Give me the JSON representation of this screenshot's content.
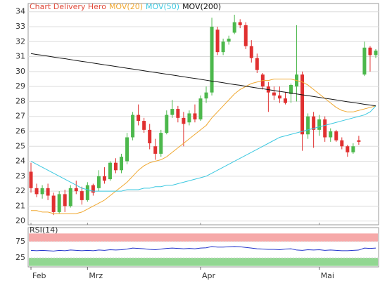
{
  "chart_data": [
    {
      "type": "candlestick",
      "title": "Chart Delivery Hero",
      "title_color": "#e04a3a",
      "categories": [
        "Feb",
        null,
        null,
        null,
        null,
        null,
        null,
        null,
        null,
        null,
        "Mrz",
        null,
        null,
        null,
        null,
        null,
        null,
        null,
        null,
        null,
        null,
        null,
        null,
        null,
        null,
        null,
        null,
        null,
        null,
        null,
        "Apr",
        null,
        null,
        null,
        null,
        null,
        null,
        null,
        null,
        null,
        null,
        null,
        null,
        null,
        null,
        null,
        null,
        null,
        null,
        null,
        null,
        "Mai",
        null,
        null,
        null,
        null,
        null,
        null,
        null,
        null,
        null,
        null
      ],
      "open": [
        23.3,
        22.2,
        21.8,
        22.2,
        21.7,
        20.6,
        21.8,
        21.0,
        22.2,
        22.0,
        21.4,
        22.4,
        22.2,
        23.0,
        22.8,
        23.9,
        23.4,
        24.0,
        25.6,
        27.1,
        26.7,
        26.1,
        25.0,
        24.5,
        25.9,
        27.1,
        27.5,
        26.9,
        26.6,
        27.2,
        26.8,
        28.2,
        28.6,
        32.8,
        31.3,
        32.0,
        32.6,
        33.3,
        33.1,
        31.7,
        30.9,
        29.8,
        29.0,
        28.6,
        28.4,
        28.2,
        28.5,
        29.0,
        29.8,
        25.8,
        27.0,
        26.1,
        26.8,
        25.6,
        26.0,
        25.4,
        25.0,
        24.6,
        25.4,
        29.8,
        31.6,
        31.1
      ],
      "high": [
        23.9,
        22.5,
        22.4,
        22.5,
        21.9,
        22.0,
        22.1,
        22.4,
        22.7,
        22.3,
        22.6,
        22.5,
        23.4,
        23.6,
        24.0,
        24.2,
        24.5,
        25.9,
        27.3,
        27.8,
        26.9,
        26.5,
        25.5,
        26.1,
        27.4,
        28.1,
        27.7,
        27.3,
        27.4,
        27.8,
        28.4,
        29.0,
        33.6,
        33.0,
        32.2,
        32.4,
        33.8,
        33.5,
        33.3,
        32.1,
        31.2,
        29.9,
        29.3,
        29.0,
        29.0,
        28.6,
        29.2,
        33.1,
        30.0,
        27.2,
        27.3,
        27.1,
        27.0,
        26.2,
        26.1,
        25.6,
        25.1,
        25.2,
        25.7,
        32.0,
        31.7,
        31.5
      ],
      "low": [
        21.9,
        21.6,
        21.5,
        21.4,
        20.4,
        20.5,
        20.6,
        20.9,
        21.8,
        21.1,
        21.3,
        21.7,
        22.0,
        22.5,
        22.7,
        23.2,
        23.2,
        23.8,
        25.4,
        26.4,
        25.9,
        24.8,
        24.1,
        24.3,
        25.8,
        26.9,
        26.6,
        25.0,
        26.4,
        26.6,
        26.7,
        27.9,
        28.4,
        31.1,
        31.1,
        31.8,
        32.5,
        32.9,
        31.5,
        30.6,
        29.9,
        28.8,
        27.3,
        28.1,
        27.9,
        27.8,
        27.9,
        28.0,
        24.7,
        25.5,
        24.9,
        25.7,
        25.3,
        25.3,
        25.3,
        24.8,
        24.3,
        24.5,
        25.1,
        29.7,
        30.0,
        30.9
      ],
      "close": [
        22.2,
        21.8,
        22.2,
        21.7,
        20.6,
        21.8,
        21.0,
        22.2,
        22.0,
        21.4,
        22.4,
        21.9,
        23.0,
        22.7,
        23.9,
        23.4,
        24.3,
        25.6,
        27.1,
        26.7,
        26.1,
        25.2,
        24.5,
        25.9,
        27.1,
        27.5,
        26.9,
        26.5,
        27.2,
        26.8,
        28.2,
        28.6,
        33.0,
        31.3,
        32.0,
        32.2,
        33.3,
        33.1,
        31.7,
        30.9,
        30.1,
        29.0,
        28.6,
        28.4,
        28.2,
        27.9,
        29.1,
        29.8,
        25.8,
        27.0,
        26.1,
        26.8,
        25.6,
        26.0,
        25.4,
        25.0,
        24.6,
        25.0,
        25.3,
        31.6,
        31.1,
        31.4
      ],
      "up_color": "#4cb84c",
      "down_color": "#e03030",
      "series": [
        {
          "name": "MOV(20)",
          "color": "#f0a830",
          "values": [
            20.7,
            20.7,
            20.6,
            20.6,
            20.5,
            20.5,
            20.5,
            20.5,
            20.5,
            20.6,
            20.8,
            21.0,
            21.2,
            21.4,
            21.7,
            22.0,
            22.3,
            22.6,
            23.0,
            23.4,
            23.7,
            23.9,
            24.0,
            24.1,
            24.3,
            24.6,
            24.9,
            25.2,
            25.5,
            25.8,
            26.1,
            26.4,
            26.9,
            27.3,
            27.7,
            28.1,
            28.5,
            28.8,
            29.0,
            29.2,
            29.3,
            29.4,
            29.4,
            29.5,
            29.5,
            29.5,
            29.5,
            29.4,
            29.3,
            29.1,
            28.8,
            28.5,
            28.2,
            27.9,
            27.6,
            27.4,
            27.3,
            27.3,
            27.4,
            27.5,
            27.6,
            27.7
          ]
        },
        {
          "name": "MOV(50)",
          "color": "#3cc8e0",
          "values": [
            24.0,
            23.8,
            23.6,
            23.4,
            23.2,
            23.0,
            22.8,
            22.6,
            22.4,
            22.2,
            22.1,
            22.0,
            22.0,
            22.0,
            22.0,
            22.0,
            22.0,
            22.1,
            22.1,
            22.1,
            22.2,
            22.2,
            22.3,
            22.3,
            22.4,
            22.4,
            22.5,
            22.6,
            22.7,
            22.8,
            22.9,
            23.0,
            23.2,
            23.4,
            23.6,
            23.8,
            24.0,
            24.2,
            24.4,
            24.6,
            24.8,
            25.0,
            25.2,
            25.4,
            25.6,
            25.7,
            25.8,
            25.9,
            26.0,
            26.1,
            26.2,
            26.3,
            26.4,
            26.5,
            26.6,
            26.7,
            26.8,
            26.9,
            27.0,
            27.1,
            27.3,
            27.7
          ]
        },
        {
          "name": "MOV(200)",
          "color": "#111111",
          "values": [
            31.2,
            31.14,
            31.09,
            31.03,
            30.97,
            30.91,
            30.86,
            30.8,
            30.74,
            30.68,
            30.63,
            30.57,
            30.51,
            30.45,
            30.4,
            30.34,
            30.28,
            30.22,
            30.17,
            30.11,
            30.05,
            29.99,
            29.94,
            29.88,
            29.82,
            29.77,
            29.71,
            29.65,
            29.59,
            29.54,
            29.48,
            29.42,
            29.36,
            29.31,
            29.25,
            29.19,
            29.13,
            29.08,
            29.02,
            28.96,
            28.9,
            28.85,
            28.79,
            28.73,
            28.67,
            28.62,
            28.56,
            28.5,
            28.44,
            28.39,
            28.33,
            28.27,
            28.21,
            28.16,
            28.1,
            28.04,
            27.98,
            27.93,
            27.87,
            27.81,
            27.76,
            27.7
          ]
        }
      ],
      "ylim": [
        19.75,
        34.55
      ],
      "yticks": [
        20,
        21,
        22,
        23,
        24,
        25,
        26,
        27,
        28,
        29,
        30,
        31,
        32,
        33,
        34
      ],
      "grid": true
    },
    {
      "type": "line",
      "title": "RSI(14)",
      "color": "#2233cc",
      "values": [
        48,
        47,
        48,
        47,
        46,
        48,
        47,
        49,
        48,
        47,
        48,
        47,
        49,
        48,
        50,
        49,
        50,
        52,
        55,
        54,
        53,
        51,
        50,
        52,
        54,
        55,
        54,
        53,
        54,
        53,
        55,
        56,
        60,
        58,
        58,
        59,
        60,
        59,
        57,
        55,
        53,
        52,
        51,
        51,
        50,
        52,
        53,
        49,
        48,
        50,
        49,
        50,
        48,
        49,
        48,
        47,
        47,
        48,
        49,
        55,
        54,
        55
      ],
      "bands": [
        {
          "from": 75,
          "to": 100,
          "color": "#f59a9a"
        },
        {
          "from": 0,
          "to": 25,
          "color": "#7fd07f"
        }
      ],
      "ylim": [
        -3,
        118
      ],
      "yticks": [
        25,
        75
      ],
      "grid": true
    }
  ]
}
